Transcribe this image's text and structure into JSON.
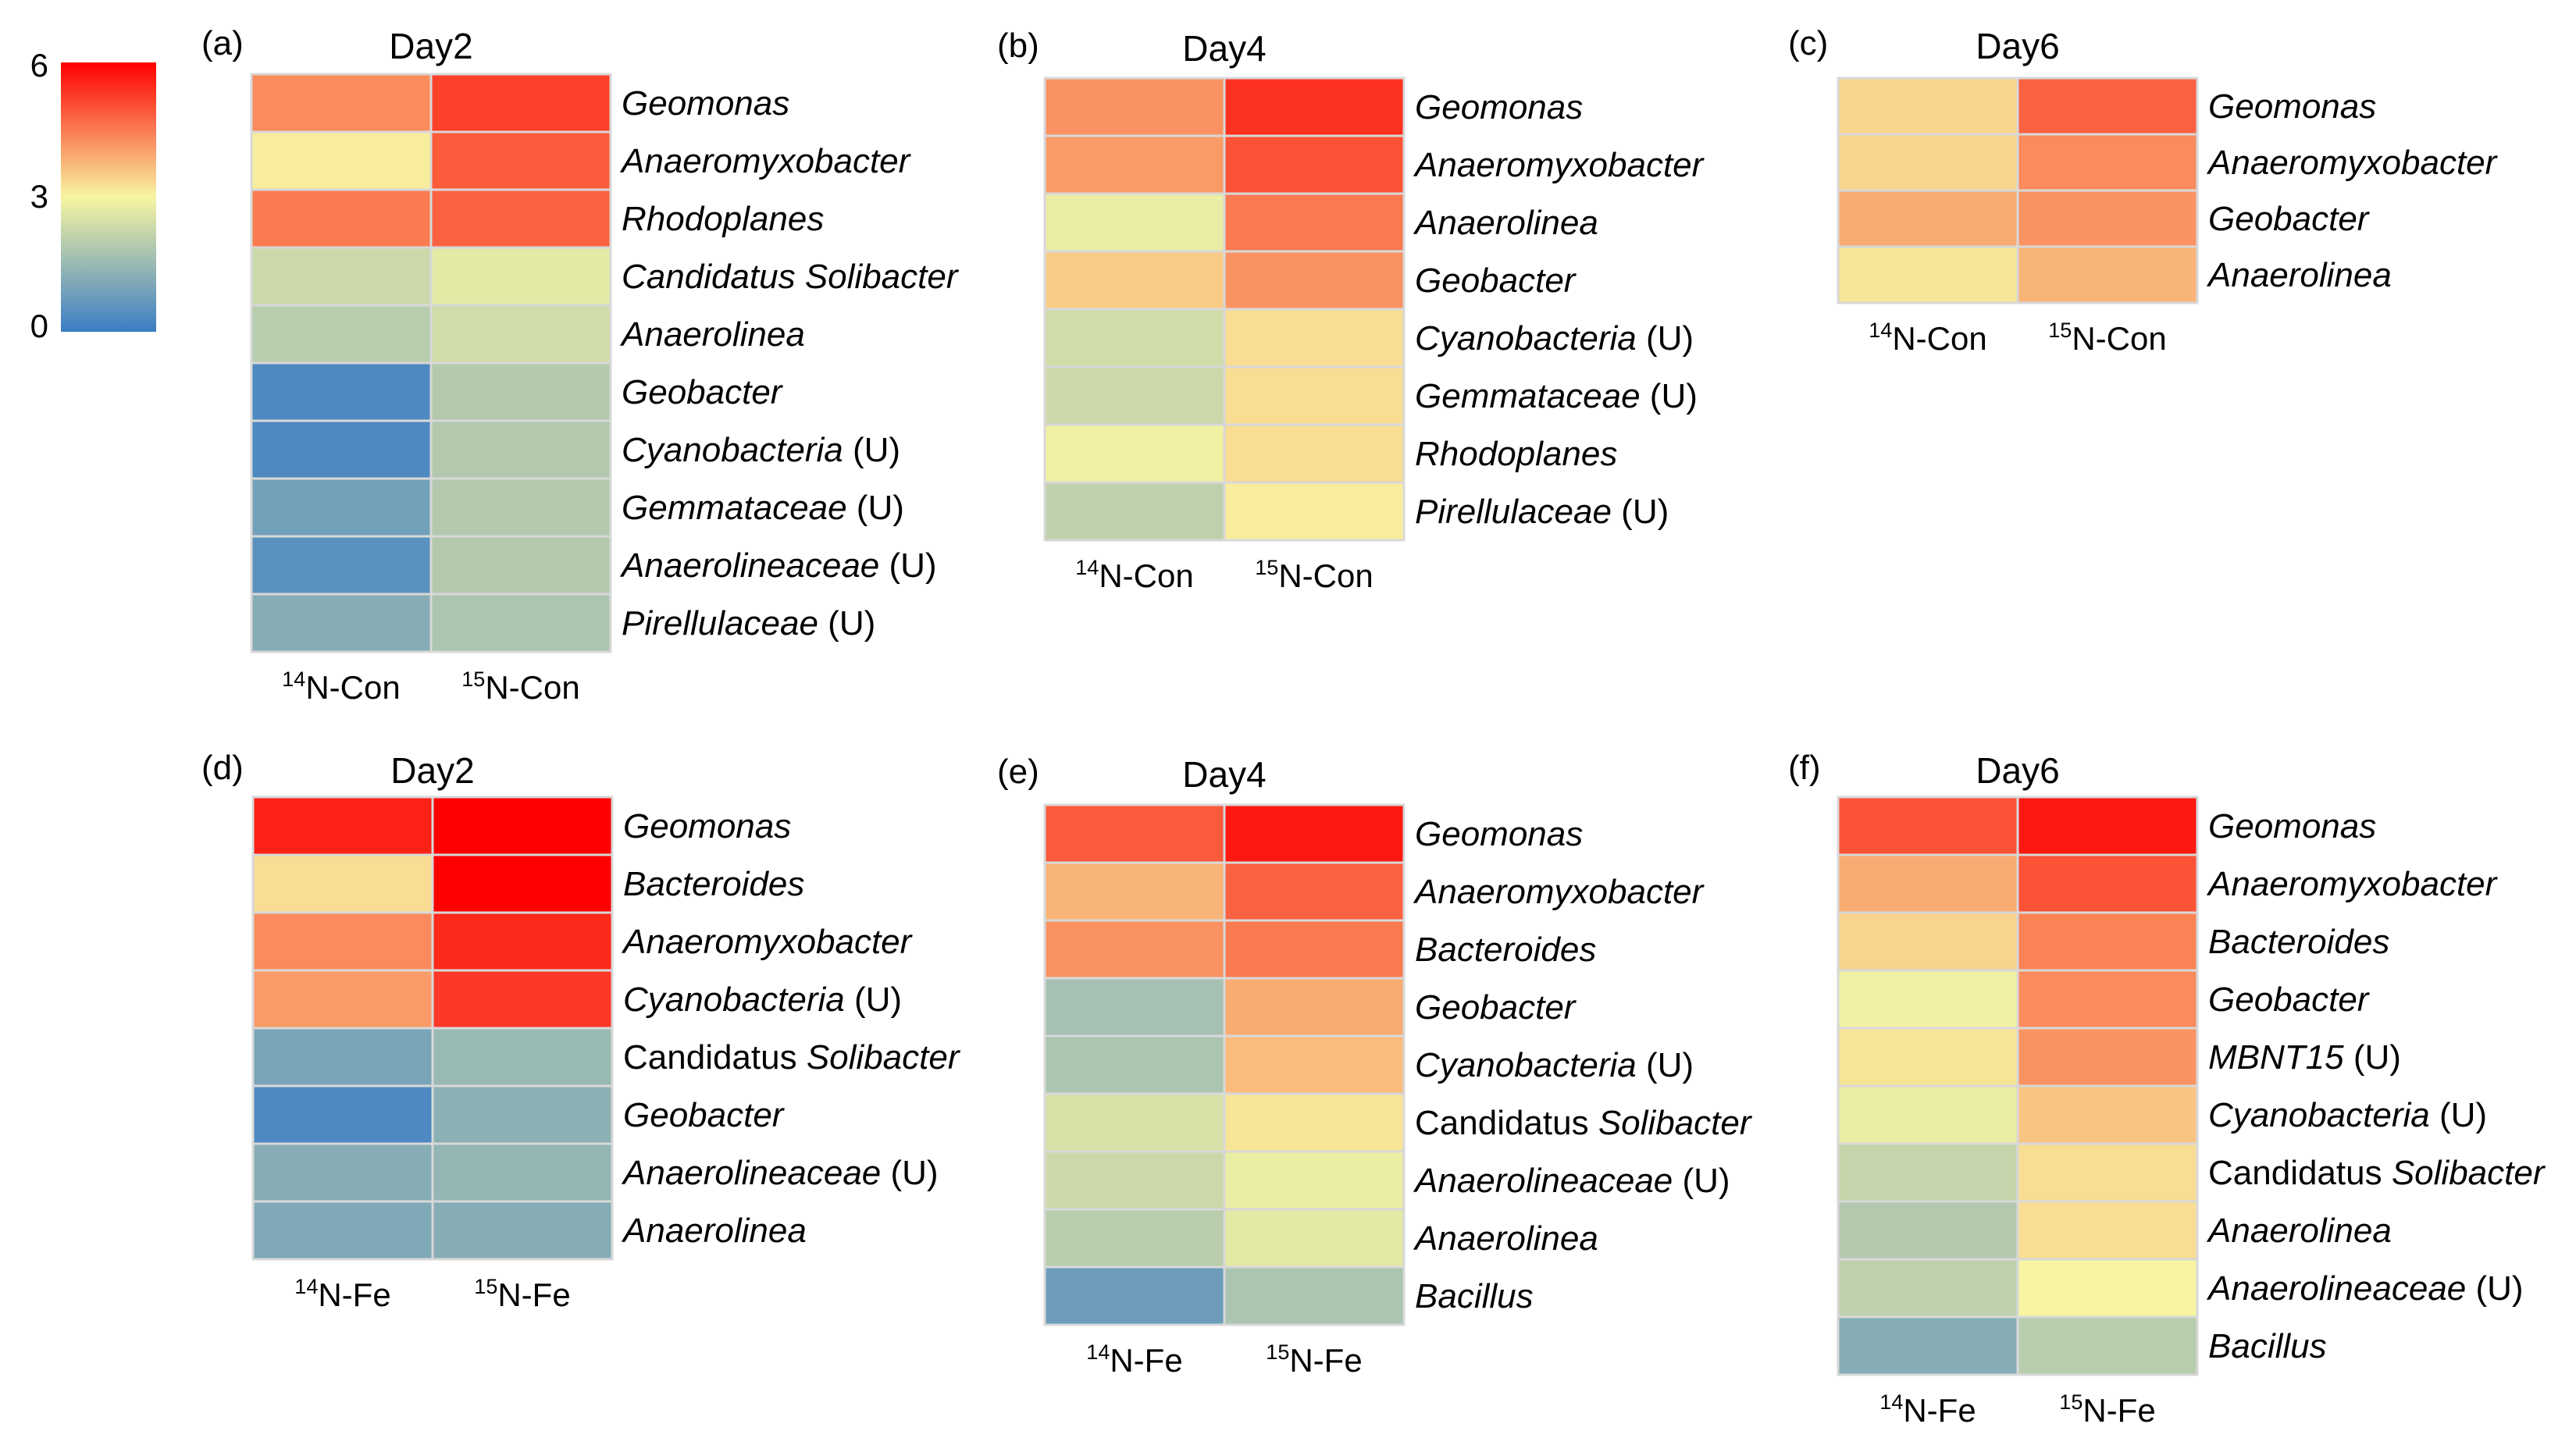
{
  "colors": {
    "low": "#3b7dc4",
    "mid": "#f7f5a2",
    "high": "#fe0000"
  },
  "colorbar": {
    "ticks": [
      "6",
      "3",
      "0"
    ],
    "min": 0,
    "max": 6
  },
  "chart_data": [
    {
      "type": "heatmap",
      "panel": "(a)",
      "title": "Day2",
      "columns": [
        "14N-Con",
        "15N-Con"
      ],
      "rows": [
        {
          "label": "Geomonas",
          "italic": "Geomonas",
          "plain": "",
          "suffix": "",
          "values": [
            4.3,
            5.2
          ]
        },
        {
          "label": "Anaeromyxobacter",
          "italic": "Anaeromyxobacter",
          "plain": "",
          "suffix": "",
          "values": [
            3.1,
            4.9
          ]
        },
        {
          "label": "Rhodoplanes",
          "italic": "Rhodoplanes",
          "plain": "",
          "suffix": "",
          "values": [
            4.5,
            4.8
          ]
        },
        {
          "label": "Candidatus Solibacter",
          "italic": "Candidatus Solibacter",
          "plain": "",
          "suffix": "",
          "values": [
            2.3,
            2.7
          ]
        },
        {
          "label": "Anaerolinea",
          "italic": "Anaerolinea",
          "plain": "",
          "suffix": "",
          "values": [
            2.0,
            2.4
          ]
        },
        {
          "label": "Geobacter",
          "italic": "Geobacter",
          "plain": "",
          "suffix": "",
          "values": [
            0.3,
            1.9
          ]
        },
        {
          "label": "Cyanobacteria (U)",
          "italic": "Cyanobacteria",
          "plain": "",
          "suffix": " (U)",
          "values": [
            0.3,
            1.9
          ]
        },
        {
          "label": "Gemmataceae (U)",
          "italic": "Gemmataceae",
          "plain": "",
          "suffix": " (U)",
          "values": [
            0.9,
            1.9
          ]
        },
        {
          "label": "Anaerolineaceae (U)",
          "italic": "Anaerolineaceae",
          "plain": "",
          "suffix": " (U)",
          "values": [
            0.5,
            1.9
          ]
        },
        {
          "label": "Pirellulaceae (U)",
          "italic": "Pirellulaceae",
          "plain": "",
          "suffix": " (U)",
          "values": [
            1.2,
            1.8
          ]
        }
      ]
    },
    {
      "type": "heatmap",
      "panel": "(b)",
      "title": "Day4",
      "columns": [
        "14N-Con",
        "15N-Con"
      ],
      "rows": [
        {
          "label": "Geomonas",
          "italic": "Geomonas",
          "plain": "",
          "suffix": "",
          "values": [
            4.2,
            5.4
          ]
        },
        {
          "label": "Anaeromyxobacter",
          "italic": "Anaeromyxobacter",
          "plain": "",
          "suffix": "",
          "values": [
            4.1,
            5.0
          ]
        },
        {
          "label": "Anaerolinea",
          "italic": "Anaerolinea",
          "plain": "",
          "suffix": "",
          "values": [
            2.8,
            4.5
          ]
        },
        {
          "label": "Geobacter",
          "italic": "Geobacter",
          "plain": "",
          "suffix": "",
          "values": [
            3.5,
            4.2
          ]
        },
        {
          "label": "Cyanobacteria (U)",
          "italic": "Cyanobacteria",
          "plain": "",
          "suffix": " (U)",
          "values": [
            2.4,
            3.3
          ]
        },
        {
          "label": "Gemmataceae (U)",
          "italic": "Gemmataceae",
          "plain": "",
          "suffix": " (U)",
          "values": [
            2.3,
            3.3
          ]
        },
        {
          "label": "Rhodoplanes",
          "italic": "Rhodoplanes",
          "plain": "",
          "suffix": "",
          "values": [
            2.9,
            3.3
          ]
        },
        {
          "label": "Pirellulaceae (U)",
          "italic": "Pirellulaceae",
          "plain": "",
          "suffix": " (U)",
          "values": [
            2.1,
            3.1
          ]
        }
      ]
    },
    {
      "type": "heatmap",
      "panel": "(c)",
      "title": "Day6",
      "columns": [
        "14N-Con",
        "15N-Con"
      ],
      "rows": [
        {
          "label": "Geomonas",
          "italic": "Geomonas",
          "plain": "",
          "suffix": "",
          "values": [
            3.4,
            4.8
          ]
        },
        {
          "label": "Anaeromyxobacter",
          "italic": "Anaeromyxobacter",
          "plain": "",
          "suffix": "",
          "values": [
            3.4,
            4.3
          ]
        },
        {
          "label": "Geobacter",
          "italic": "Geobacter",
          "plain": "",
          "suffix": "",
          "values": [
            3.9,
            4.2
          ]
        },
        {
          "label": "Anaerolinea",
          "italic": "Anaerolinea",
          "plain": "",
          "suffix": "",
          "values": [
            3.2,
            3.8
          ]
        }
      ]
    },
    {
      "type": "heatmap",
      "panel": "(d)",
      "title": "Day2",
      "columns": [
        "14N-Fe",
        "15N-Fe"
      ],
      "rows": [
        {
          "label": "Geomonas",
          "italic": "Geomonas",
          "plain": "",
          "suffix": "",
          "values": [
            5.6,
            6.0
          ]
        },
        {
          "label": "Bacteroides",
          "italic": "Bacteroides",
          "plain": "",
          "suffix": "",
          "values": [
            3.3,
            6.0
          ]
        },
        {
          "label": "Anaeromyxobacter",
          "italic": "Anaeromyxobacter",
          "plain": "",
          "suffix": "",
          "values": [
            4.3,
            5.5
          ]
        },
        {
          "label": "Cyanobacteria (U)",
          "italic": "Cyanobacteria",
          "plain": "",
          "suffix": " (U)",
          "values": [
            4.1,
            5.3
          ]
        },
        {
          "label": "Candidatus Solibacter",
          "italic": "Solibacter",
          "plain": "Candidatus ",
          "suffix": "",
          "values": [
            1.0,
            1.5
          ]
        },
        {
          "label": "Geobacter",
          "italic": "Geobacter",
          "plain": "",
          "suffix": "",
          "values": [
            0.3,
            1.3
          ]
        },
        {
          "label": "Anaerolineaceae (U)",
          "italic": "Anaerolineaceae",
          "plain": "",
          "suffix": " (U)",
          "values": [
            1.2,
            1.4
          ]
        },
        {
          "label": "Anaerolinea",
          "italic": "Anaerolinea",
          "plain": "",
          "suffix": "",
          "values": [
            1.1,
            1.2
          ]
        }
      ]
    },
    {
      "type": "heatmap",
      "panel": "(e)",
      "title": "Day4",
      "columns": [
        "14N-Fe",
        "15N-Fe"
      ],
      "rows": [
        {
          "label": "Geomonas",
          "italic": "Geomonas",
          "plain": "",
          "suffix": "",
          "values": [
            4.9,
            5.7
          ]
        },
        {
          "label": "Anaeromyxobacter",
          "italic": "Anaeromyxobacter",
          "plain": "",
          "suffix": "",
          "values": [
            3.8,
            4.8
          ]
        },
        {
          "label": "Bacteroides",
          "italic": "Bacteroides",
          "plain": "",
          "suffix": "",
          "values": [
            4.2,
            4.5
          ]
        },
        {
          "label": "Geobacter",
          "italic": "Geobacter",
          "plain": "",
          "suffix": "",
          "values": [
            1.7,
            3.9
          ]
        },
        {
          "label": "Cyanobacteria (U)",
          "italic": "Cyanobacteria",
          "plain": "",
          "suffix": " (U)",
          "values": [
            1.8,
            3.7
          ]
        },
        {
          "label": "Candidatus Solibacter",
          "italic": "Solibacter",
          "plain": "Candidatus ",
          "suffix": "",
          "values": [
            2.5,
            3.2
          ]
        },
        {
          "label": "Anaerolineaceae (U)",
          "italic": "Anaerolineaceae",
          "plain": "",
          "suffix": " (U)",
          "values": [
            2.3,
            2.8
          ]
        },
        {
          "label": "Anaerolinea",
          "italic": "Anaerolinea",
          "plain": "",
          "suffix": "",
          "values": [
            2.0,
            2.7
          ]
        },
        {
          "label": "Bacillus",
          "italic": "Bacillus",
          "plain": "",
          "suffix": "",
          "values": [
            0.8,
            1.8
          ]
        }
      ]
    },
    {
      "type": "heatmap",
      "panel": "(f)",
      "title": "Day6",
      "columns": [
        "14N-Fe",
        "15N-Fe"
      ],
      "rows": [
        {
          "label": "Geomonas",
          "italic": "Geomonas",
          "plain": "",
          "suffix": "",
          "values": [
            5.0,
            5.7
          ]
        },
        {
          "label": "Anaeromyxobacter",
          "italic": "Anaeromyxobacter",
          "plain": "",
          "suffix": "",
          "values": [
            3.9,
            5.0
          ]
        },
        {
          "label": "Bacteroides",
          "italic": "Bacteroides",
          "plain": "",
          "suffix": "",
          "values": [
            3.4,
            4.4
          ]
        },
        {
          "label": "Geobacter",
          "italic": "Geobacter",
          "plain": "",
          "suffix": "",
          "values": [
            2.9,
            4.3
          ]
        },
        {
          "label": "MBNT15 (U)",
          "italic": "MBNT15",
          "plain": "",
          "suffix": " (U)",
          "values": [
            3.2,
            4.2
          ]
        },
        {
          "label": "Cyanobacteria (U)",
          "italic": "Cyanobacteria",
          "plain": "",
          "suffix": " (U)",
          "values": [
            2.8,
            3.6
          ]
        },
        {
          "label": "Candidatus Solibacter",
          "italic": "Solibacter",
          "plain": "Candidatus ",
          "suffix": "",
          "values": [
            2.2,
            3.3
          ]
        },
        {
          "label": "Anaerolinea",
          "italic": "Anaerolinea",
          "plain": "",
          "suffix": "",
          "values": [
            1.9,
            3.3
          ]
        },
        {
          "label": "Anaerolineaceae (U)",
          "italic": "Anaerolineaceae",
          "plain": "",
          "suffix": " (U)",
          "values": [
            2.1,
            3.0
          ]
        },
        {
          "label": "Bacillus",
          "italic": "Bacillus",
          "plain": "",
          "suffix": "",
          "values": [
            1.2,
            2.0
          ]
        }
      ]
    }
  ]
}
